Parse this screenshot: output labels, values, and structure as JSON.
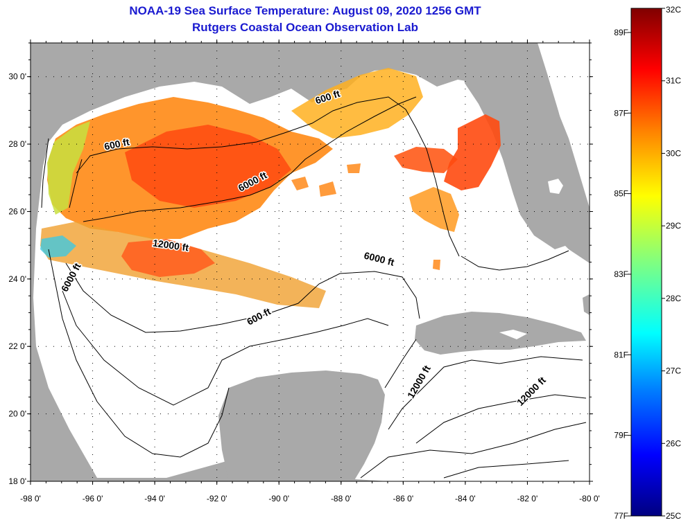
{
  "title": "NOAA-19 Sea Surface Temperature:  August 09, 2020 1256 GMT",
  "subtitle": "Rutgers Coastal Ocean Observation Lab",
  "map": {
    "lon_range": [
      -98,
      -80
    ],
    "lat_range": [
      18,
      31
    ],
    "lon_labels": [
      "-98 0'",
      "-96 0'",
      "-94 0'",
      "-92 0'",
      "-90 0'",
      "-88 0'",
      "-86 0'",
      "-84 0'",
      "-82 0'",
      "-80 0'"
    ],
    "lat_labels": [
      "30 0'",
      "28 0'",
      "26 0'",
      "24 0'",
      "22 0'",
      "20 0'",
      "18 0'"
    ],
    "contour_labels": [
      {
        "text": "600 ft",
        "lon": -95.2,
        "lat": 27.9,
        "angle": -12
      },
      {
        "text": "6000 ft",
        "lon": -90.8,
        "lat": 26.8,
        "angle": -28
      },
      {
        "text": "600 ft",
        "lon": -88.4,
        "lat": 29.3,
        "angle": -18
      },
      {
        "text": "12000 ft",
        "lon": -93.5,
        "lat": 24.9,
        "angle": 8
      },
      {
        "text": "6000 ft",
        "lon": -86.8,
        "lat": 24.5,
        "angle": 14
      },
      {
        "text": "6000 ft",
        "lon": -96.6,
        "lat": 24.0,
        "angle": -62
      },
      {
        "text": "600 ft",
        "lon": -90.6,
        "lat": 22.8,
        "angle": -28
      },
      {
        "text": "12000 ft",
        "lon": -85.4,
        "lat": 20.9,
        "angle": -60
      },
      {
        "text": "12000 ft",
        "lon": -81.8,
        "lat": 20.6,
        "angle": -45
      }
    ],
    "colors": {
      "land": "#a9a9a9",
      "ocean": "#ffffff",
      "frame": "#000000"
    }
  },
  "colorbar": {
    "min_c": 25,
    "max_c": 32,
    "c_labels": [
      "32C",
      "31C",
      "30C",
      "29C",
      "28C",
      "27C",
      "26C",
      "25C"
    ],
    "f_labels": [
      "89F",
      "87F",
      "85F",
      "83F",
      "81F",
      "79F",
      "77F"
    ],
    "f_values": [
      89,
      87,
      85,
      83,
      81,
      79,
      77
    ]
  }
}
